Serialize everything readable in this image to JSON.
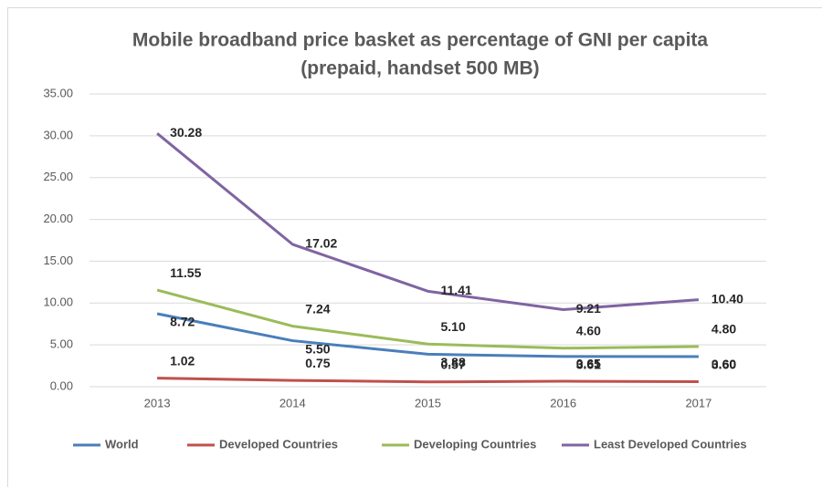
{
  "chart_data": {
    "type": "line",
    "title": [
      "Mobile broadband price basket as percentage of GNI per capita",
      "(prepaid, handset 500 MB)"
    ],
    "categories": [
      "2013",
      "2014",
      "2015",
      "2016",
      "2017"
    ],
    "ylim": [
      0,
      35
    ],
    "yticks": [
      {
        "value": 0,
        "label": "0.00"
      },
      {
        "value": 5,
        "label": "5.00"
      },
      {
        "value": 10,
        "label": "10.00"
      },
      {
        "value": 15,
        "label": "15.00"
      },
      {
        "value": 20,
        "label": "20.00"
      },
      {
        "value": 25,
        "label": "25.00"
      },
      {
        "value": 30,
        "label": "30.00"
      },
      {
        "value": 35,
        "label": "35.00"
      }
    ],
    "grid": true,
    "legend": "bottom",
    "series": [
      {
        "name": "World",
        "color": "#4a7ebb",
        "values": [
          8.72,
          5.5,
          3.88,
          3.61,
          3.6
        ],
        "value_labels": [
          "8.72",
          "5.50",
          "3.88",
          "3.61",
          "3.60"
        ]
      },
      {
        "name": "Developed Countries",
        "color": "#c0504d",
        "values": [
          1.02,
          0.75,
          0.57,
          0.65,
          0.6
        ],
        "value_labels": [
          "1.02",
          "0.75",
          "0.57",
          "0.65",
          "0.60"
        ]
      },
      {
        "name": "Developing Countries",
        "color": "#9bbb59",
        "values": [
          11.55,
          7.24,
          5.1,
          4.6,
          4.8
        ],
        "value_labels": [
          "11.55",
          "7.24",
          "5.10",
          "4.60",
          "4.80"
        ]
      },
      {
        "name": "Least Developed Countries",
        "color": "#8064a2",
        "values": [
          30.28,
          17.02,
          11.41,
          9.21,
          10.4
        ],
        "value_labels": [
          "30.28",
          "17.02",
          "11.41",
          "9.21",
          "10.40"
        ]
      }
    ]
  }
}
